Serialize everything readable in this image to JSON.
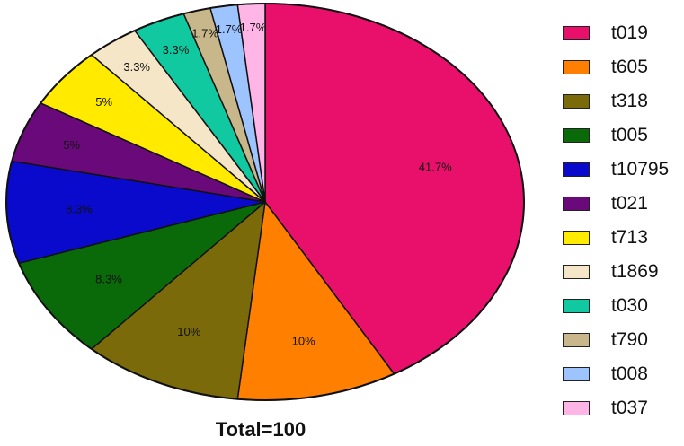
{
  "chart_data": {
    "type": "pie",
    "slices": [
      {
        "name": "t019",
        "value": 41.7,
        "label": "41.7%",
        "color": "#E8106A"
      },
      {
        "name": "t605",
        "value": 10,
        "label": "10%",
        "color": "#FF7F00"
      },
      {
        "name": "t318",
        "value": 10,
        "label": "10%",
        "color": "#7A6A0A"
      },
      {
        "name": "t005",
        "value": 8.3,
        "label": "8.3%",
        "color": "#0A6A0A"
      },
      {
        "name": "t10795",
        "value": 8.3,
        "label": "8.3%",
        "color": "#0A0ACC"
      },
      {
        "name": "t021",
        "value": 5,
        "label": "5%",
        "color": "#6A0A7A"
      },
      {
        "name": "t713",
        "value": 5,
        "label": "5%",
        "color": "#FFEA00"
      },
      {
        "name": "t1869",
        "value": 3.3,
        "label": "3.3%",
        "color": "#F5E6C8"
      },
      {
        "name": "t030",
        "value": 3.3,
        "label": "3.3%",
        "color": "#10C9A0"
      },
      {
        "name": "t790",
        "value": 1.7,
        "label": "1.7%",
        "color": "#C8B78A"
      },
      {
        "name": "t008",
        "value": 1.7,
        "label": "1.7%",
        "color": "#9EC4FF"
      },
      {
        "name": "t037",
        "value": 1.7,
        "label": "1.7%",
        "color": "#FFB6E6"
      }
    ],
    "legend_position": "right",
    "footer": "Total=100"
  }
}
